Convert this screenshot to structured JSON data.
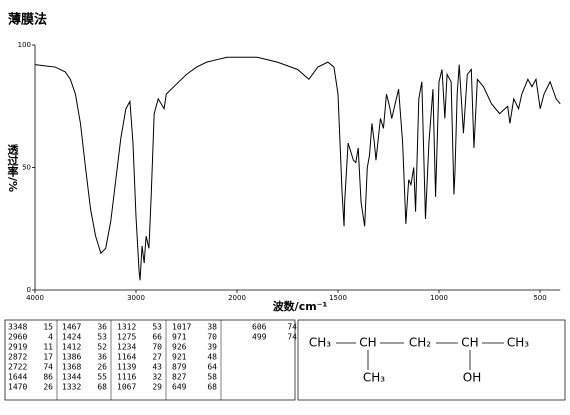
{
  "chart_data": {
    "type": "line",
    "title": "薄膜法",
    "x_label": "波数/cm⁻¹",
    "y_label": "透过率/%",
    "color": "#000000",
    "x": [
      4000,
      3900,
      3800,
      3700,
      3650,
      3600,
      3550,
      3500,
      3450,
      3400,
      3348,
      3300,
      3250,
      3200,
      3150,
      3100,
      3060,
      3030,
      3000,
      2970,
      2960,
      2940,
      2919,
      2900,
      2872,
      2850,
      2820,
      2780,
      2722,
      2700,
      2600,
      2500,
      2400,
      2300,
      2200,
      2100,
      2000,
      1900,
      1800,
      1700,
      1644,
      1600,
      1550,
      1520,
      1500,
      1480,
      1470,
      1467,
      1450,
      1424,
      1412,
      1400,
      1386,
      1368,
      1355,
      1344,
      1332,
      1320,
      1312,
      1290,
      1275,
      1260,
      1245,
      1234,
      1200,
      1180,
      1164,
      1150,
      1139,
      1125,
      1116,
      1100,
      1085,
      1067,
      1050,
      1030,
      1017,
      1000,
      985,
      971,
      960,
      940,
      926,
      921,
      910,
      900,
      879,
      860,
      840,
      827,
      810,
      780,
      740,
      700,
      660,
      649,
      630,
      606,
      590,
      560,
      540,
      520,
      499,
      480,
      450,
      420,
      400
    ],
    "values": [
      92,
      91.5,
      91,
      89,
      86,
      80,
      68,
      50,
      33,
      22,
      15,
      17,
      28,
      45,
      62,
      74,
      77,
      60,
      30,
      8,
      4,
      18,
      11,
      22,
      17,
      38,
      72,
      78,
      74,
      80,
      84,
      88,
      91,
      93,
      94,
      95,
      95,
      95,
      93,
      90,
      86,
      91,
      93,
      91,
      80,
      40,
      26,
      36,
      60,
      53,
      52,
      58,
      36,
      26,
      50,
      55,
      68,
      60,
      53,
      70,
      66,
      80,
      75,
      70,
      82,
      60,
      27,
      45,
      43,
      50,
      32,
      78,
      85,
      29,
      60,
      82,
      38,
      85,
      90,
      70,
      88,
      85,
      39,
      48,
      80,
      92,
      64,
      88,
      90,
      58,
      86,
      83,
      76,
      72,
      75,
      68,
      78,
      74,
      80,
      86,
      83,
      86,
      74,
      80,
      85,
      78,
      76
    ],
    "xlim": [
      4000,
      400
    ],
    "ylim": [
      0,
      100
    ],
    "xticks": [
      4000,
      3000,
      2000,
      1500,
      1000,
      500
    ],
    "yticks": [
      0,
      50,
      100
    ]
  },
  "peak_table": {
    "columns": [
      [
        [
          3348,
          15
        ],
        [
          2960,
          4
        ],
        [
          2919,
          11
        ],
        [
          2872,
          17
        ],
        [
          2722,
          74
        ],
        [
          1644,
          86
        ],
        [
          1470,
          26
        ]
      ],
      [
        [
          1467,
          36
        ],
        [
          1424,
          53
        ],
        [
          1412,
          52
        ],
        [
          1386,
          36
        ],
        [
          1368,
          26
        ],
        [
          1344,
          55
        ],
        [
          1332,
          68
        ]
      ],
      [
        [
          1312,
          53
        ],
        [
          1275,
          66
        ],
        [
          1234,
          70
        ],
        [
          1164,
          27
        ],
        [
          1139,
          43
        ],
        [
          1116,
          32
        ],
        [
          1067,
          29
        ]
      ],
      [
        [
          1017,
          38
        ],
        [
          971,
          70
        ],
        [
          926,
          39
        ],
        [
          921,
          48
        ],
        [
          879,
          64
        ],
        [
          827,
          58
        ],
        [
          649,
          68
        ]
      ],
      [
        [
          606,
          74
        ],
        [
          499,
          74
        ]
      ]
    ]
  },
  "structure": {
    "chain": [
      "CH₃",
      "CH",
      "CH₂",
      "CH",
      "CH₃"
    ],
    "substituent_1": "CH₃",
    "substituent_2": "OH"
  }
}
